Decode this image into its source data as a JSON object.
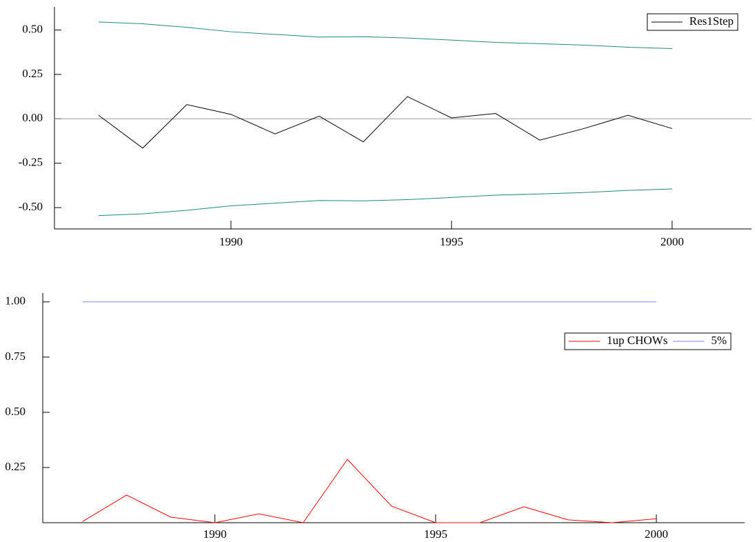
{
  "chart_data": [
    {
      "type": "line",
      "x": [
        1987,
        1988,
        1989,
        1990,
        1991,
        1992,
        1993,
        1994,
        1995,
        1996,
        1997,
        1998,
        1999,
        2000
      ],
      "series": [
        {
          "name": "Res1Step",
          "color": "#000000",
          "values": [
            0.02,
            -0.165,
            0.08,
            0.025,
            -0.085,
            0.015,
            -0.13,
            0.125,
            0.005,
            0.03,
            -0.12,
            -0.055,
            0.02,
            -0.055
          ]
        },
        {
          "color": "#1a8a80",
          "values": [
            0.545,
            0.535,
            0.515,
            0.49,
            0.475,
            0.46,
            0.462,
            0.455,
            0.443,
            0.43,
            0.423,
            0.415,
            0.403,
            0.395
          ]
        },
        {
          "color": "#1a8a80",
          "values": [
            -0.545,
            -0.535,
            -0.515,
            -0.49,
            -0.475,
            -0.46,
            -0.462,
            -0.455,
            -0.443,
            -0.43,
            -0.423,
            -0.415,
            -0.403,
            -0.395
          ]
        }
      ],
      "xlim": [
        1986,
        2001.8
      ],
      "xticks": [
        1990,
        1995,
        2000
      ],
      "ylim": [
        -0.62,
        0.63
      ],
      "yticks": [
        {
          "value": -0.5,
          "label": "-0.50"
        },
        -0.25,
        {
          "value": 0,
          "label": "0.00"
        },
        0.25,
        {
          "value": 0.5,
          "label": "0.50"
        }
      ],
      "zero_line": true,
      "legend": "upper right"
    },
    {
      "type": "line",
      "x": [
        1987,
        1988,
        1989,
        1990,
        1991,
        1992,
        1993,
        1994,
        1995,
        1996,
        1997,
        1998,
        1999,
        2000
      ],
      "series": [
        {
          "name": "1up CHOWs",
          "color": "#ff0000",
          "values": [
            0.005,
            0.125,
            0.025,
            0.0,
            0.04,
            0.0,
            0.287,
            0.075,
            0.0,
            0.0,
            0.072,
            0.013,
            0.0,
            0.018
          ]
        },
        {
          "name": "5%",
          "color": "#8080ff",
          "values": [
            1,
            1,
            1,
            1,
            1,
            1,
            1,
            1,
            1,
            1,
            1,
            1,
            1,
            1
          ]
        }
      ],
      "xlim": [
        1986.1,
        2002
      ],
      "xticks": [
        1990,
        1995,
        2000
      ],
      "ylim": [
        0,
        1.04
      ],
      "yticks": [
        0.25,
        {
          "value": 0.5,
          "label": "0.50"
        },
        0.75,
        {
          "value": 1,
          "label": "1.00"
        }
      ],
      "zero_line": false,
      "legend": "upper right"
    }
  ]
}
